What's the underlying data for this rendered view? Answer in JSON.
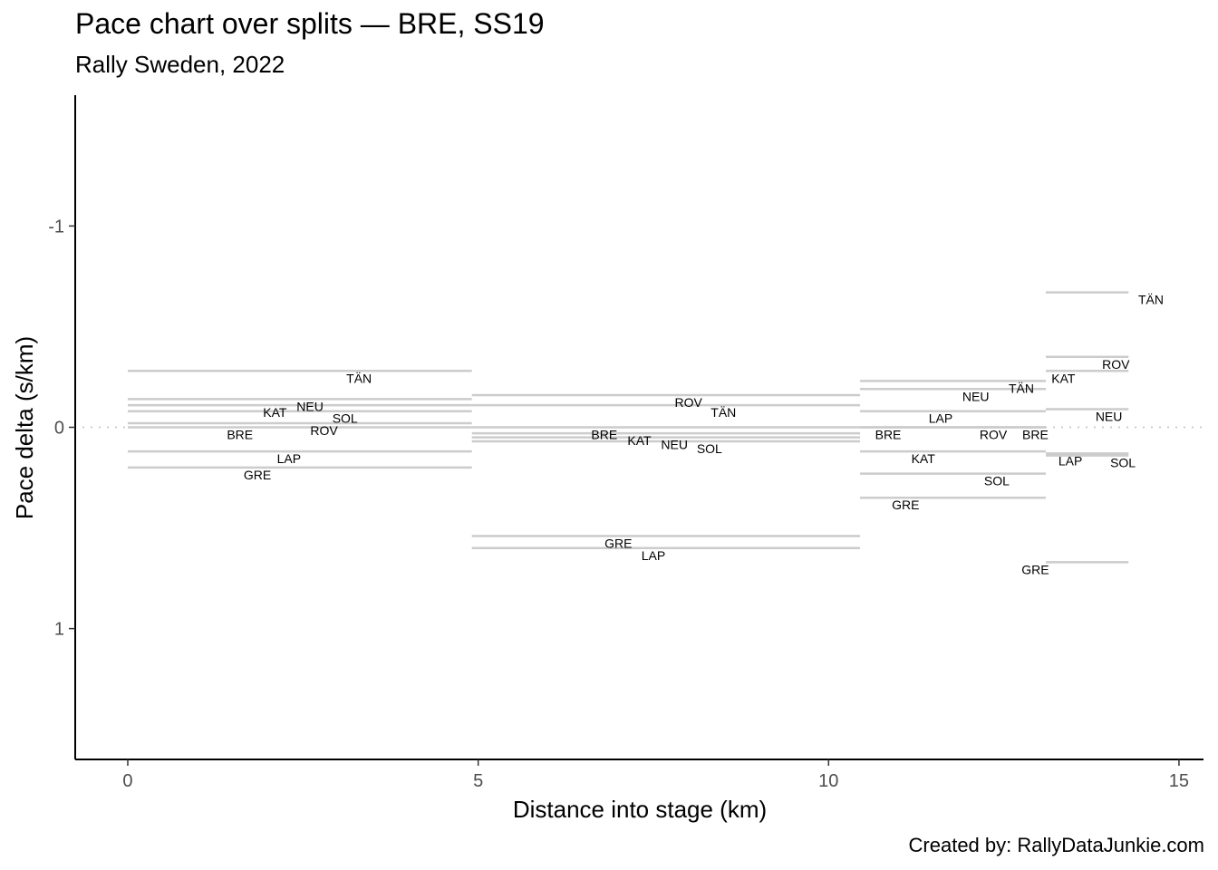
{
  "chart_data": {
    "type": "line",
    "title": "Pace chart over splits — BRE, SS19",
    "subtitle": "Rally Sweden, 2022",
    "caption": "Created by: RallyDataJunkie.com",
    "xlabel": "Distance into stage (km)",
    "ylabel": "Pace delta (s/km)",
    "xlim": [
      -0.75,
      15.35
    ],
    "ylim": [
      1.65,
      -1.65
    ],
    "y_reversed": true,
    "x_ticks": [
      {
        "value": 0,
        "label": "0"
      },
      {
        "value": 5,
        "label": "5"
      },
      {
        "value": 10,
        "label": "10"
      },
      {
        "value": 15,
        "label": "15"
      }
    ],
    "y_ticks": [
      {
        "value": -1,
        "label": "-1"
      },
      {
        "value": 0,
        "label": "0"
      },
      {
        "value": 1,
        "label": "1"
      }
    ],
    "reference_line": {
      "y": 0,
      "style": "dotted"
    },
    "grid": false,
    "line_color": "#cccccc",
    "splits": [
      {
        "start": 0,
        "end": 4.91,
        "segments": [
          {
            "driver": "TÄN",
            "pace": -0.28,
            "label_x": 3.3
          },
          {
            "driver": "NEU",
            "pace": -0.14,
            "label_x": 2.6
          },
          {
            "driver": "KAT",
            "pace": -0.11,
            "label_x": 2.1
          },
          {
            "driver": "SOL",
            "pace": -0.08,
            "label_x": 3.1
          },
          {
            "driver": "ROV",
            "pace": -0.02,
            "label_x": 2.8
          },
          {
            "driver": "BRE",
            "pace": 0.0,
            "label_x": 1.6
          },
          {
            "driver": "LAP",
            "pace": 0.12,
            "label_x": 2.3
          },
          {
            "driver": "GRE",
            "pace": 0.2,
            "label_x": 1.85
          }
        ]
      },
      {
        "start": 4.91,
        "end": 10.45,
        "segments": [
          {
            "driver": "ROV",
            "pace": -0.16,
            "label_x": 8.0
          },
          {
            "driver": "TÄN",
            "pace": -0.11,
            "label_x": 8.5
          },
          {
            "driver": "BRE",
            "pace": 0.0,
            "label_x": 6.8
          },
          {
            "driver": "KAT",
            "pace": 0.03,
            "label_x": 7.3
          },
          {
            "driver": "NEU",
            "pace": 0.05,
            "label_x": 7.8
          },
          {
            "driver": "SOL",
            "pace": 0.07,
            "label_x": 8.3
          },
          {
            "driver": "GRE",
            "pace": 0.54,
            "label_x": 7.0
          },
          {
            "driver": "LAP",
            "pace": 0.6,
            "label_x": 7.5
          }
        ]
      },
      {
        "start": 10.45,
        "end": 13.1,
        "segments": [
          {
            "driver": "TÄN",
            "pace": -0.23,
            "label_x": 12.75
          },
          {
            "driver": "NEU",
            "pace": -0.19,
            "label_x": 12.1
          },
          {
            "driver": "LAP",
            "pace": -0.08,
            "label_x": 11.6
          },
          {
            "driver": "BRE",
            "pace": 0.0,
            "label_x": 10.85
          },
          {
            "driver": "ROV",
            "pace": 0.0,
            "label_x": 12.35
          },
          {
            "driver": "BRE",
            "pace": 0.0,
            "label_x": 12.95
          },
          {
            "driver": "KAT",
            "pace": 0.12,
            "label_x": 11.35
          },
          {
            "driver": "SOL",
            "pace": 0.23,
            "label_x": 12.4
          },
          {
            "driver": "GRE",
            "pace": 0.35,
            "label_x": 11.1
          }
        ]
      },
      {
        "start": 13.1,
        "end": 14.28,
        "segments": [
          {
            "driver": "TÄN",
            "pace": -0.67,
            "label_x": 14.6
          },
          {
            "driver": "ROV",
            "pace": -0.35,
            "label_x": 14.1
          },
          {
            "driver": "KAT",
            "pace": -0.28,
            "label_x": 13.35
          },
          {
            "driver": "NEU",
            "pace": -0.09,
            "label_x": 14.0
          },
          {
            "driver": "LAP",
            "pace": 0.13,
            "label_x": 13.45
          },
          {
            "driver": "SOL",
            "pace": 0.14,
            "label_x": 14.2
          },
          {
            "driver": "GRE",
            "pace": 0.67,
            "label_x": 12.95
          }
        ]
      }
    ]
  }
}
